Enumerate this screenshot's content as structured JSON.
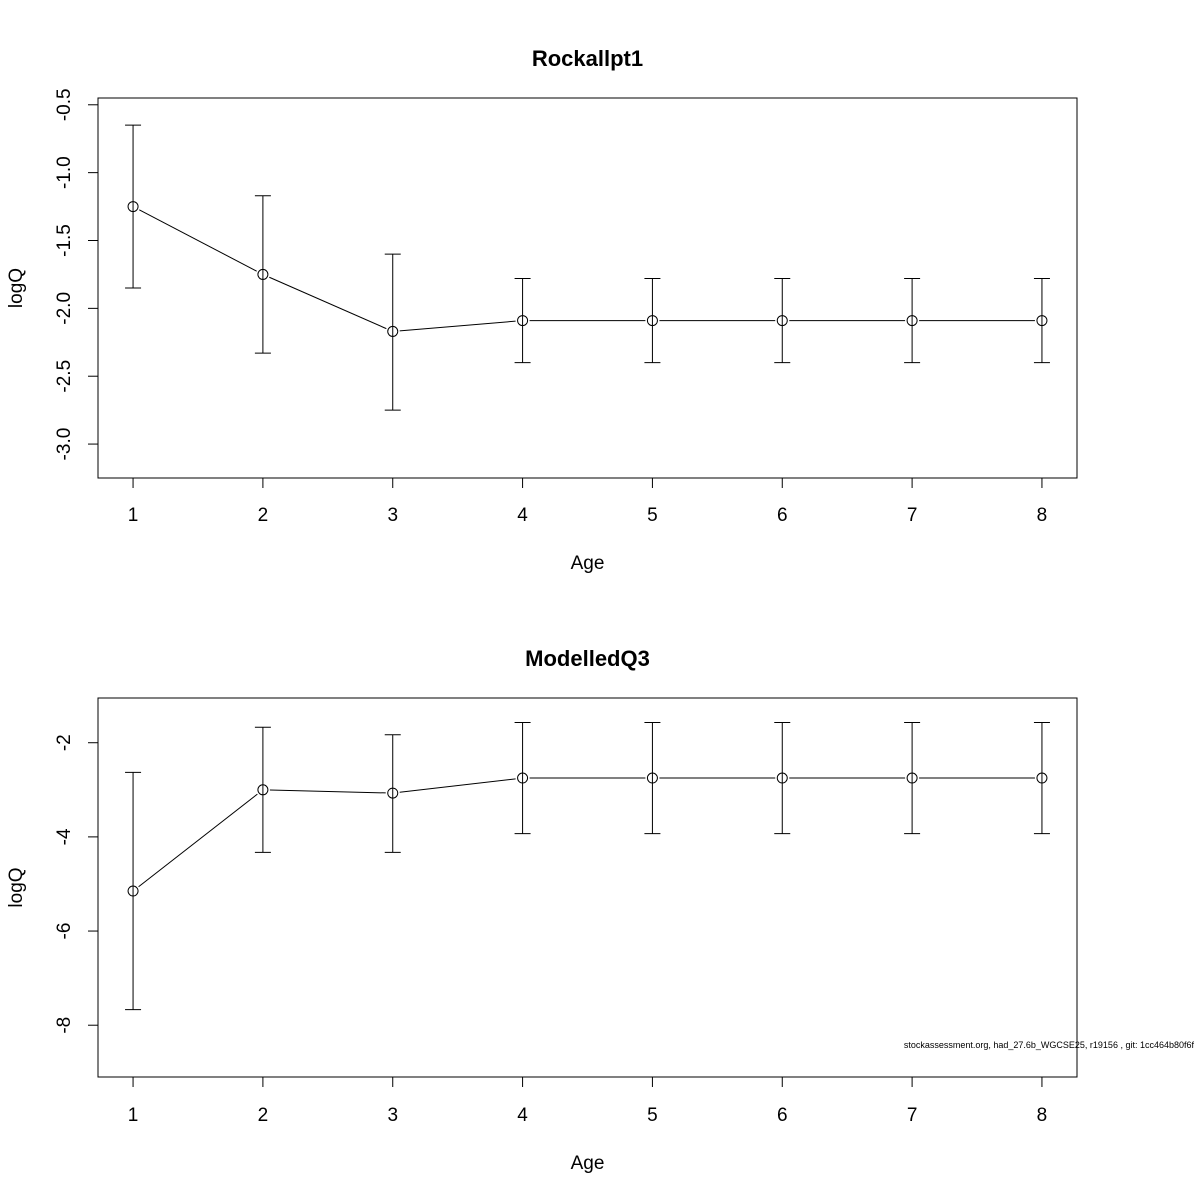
{
  "chart_data": [
    {
      "type": "line",
      "title": "Rockallpt1",
      "xlabel": "Age",
      "ylabel": "logQ",
      "x": [
        1,
        2,
        3,
        4,
        5,
        6,
        7,
        8
      ],
      "y": [
        -1.25,
        -1.75,
        -2.17,
        -2.09,
        -2.09,
        -2.09,
        -2.09,
        -2.09
      ],
      "y_lower": [
        -1.85,
        -2.33,
        -2.75,
        -2.4,
        -2.4,
        -2.4,
        -2.4,
        -2.4
      ],
      "y_upper": [
        -0.65,
        -1.17,
        -1.6,
        -1.78,
        -1.78,
        -1.78,
        -1.78,
        -1.78
      ],
      "xlim": [
        0.73,
        8.27
      ],
      "ylim": [
        -3.25,
        -0.45
      ],
      "xticks": [
        1,
        2,
        3,
        4,
        5,
        6,
        7,
        8
      ],
      "xtick_labels": [
        "1",
        "2",
        "3",
        "4",
        "5",
        "6",
        "7",
        "8"
      ],
      "yticks": [
        -0.5,
        -1.0,
        -1.5,
        -2.0,
        -2.5,
        -3.0
      ],
      "ytick_labels": [
        "-0.5",
        "-1.0",
        "-1.5",
        "-2.0",
        "-2.5",
        "-3.0"
      ],
      "grid": false,
      "markers": "open-circle",
      "error_bars": true
    },
    {
      "type": "line",
      "title": "ModelledQ3",
      "xlabel": "Age",
      "ylabel": "logQ",
      "x": [
        1,
        2,
        3,
        4,
        5,
        6,
        7,
        8
      ],
      "y": [
        -5.15,
        -3.0,
        -3.07,
        -2.75,
        -2.75,
        -2.75,
        -2.75,
        -2.75
      ],
      "y_lower": [
        -7.67,
        -4.33,
        -4.33,
        -3.93,
        -3.93,
        -3.93,
        -3.93,
        -3.93
      ],
      "y_upper": [
        -2.63,
        -1.67,
        -1.83,
        -1.57,
        -1.57,
        -1.57,
        -1.57,
        -1.57
      ],
      "xlim": [
        0.73,
        8.27
      ],
      "ylim": [
        -9.1,
        -1.05
      ],
      "xticks": [
        1,
        2,
        3,
        4,
        5,
        6,
        7,
        8
      ],
      "xtick_labels": [
        "1",
        "2",
        "3",
        "4",
        "5",
        "6",
        "7",
        "8"
      ],
      "yticks": [
        -2,
        -4,
        -6,
        -8
      ],
      "ytick_labels": [
        "-2",
        "-4",
        "-6",
        "-8"
      ],
      "grid": false,
      "markers": "open-circle",
      "error_bars": true
    }
  ],
  "footer_text": "stockassessment.org, had_27.6b_WGCSE25, r19156 , git: 1cc464b80f6f"
}
